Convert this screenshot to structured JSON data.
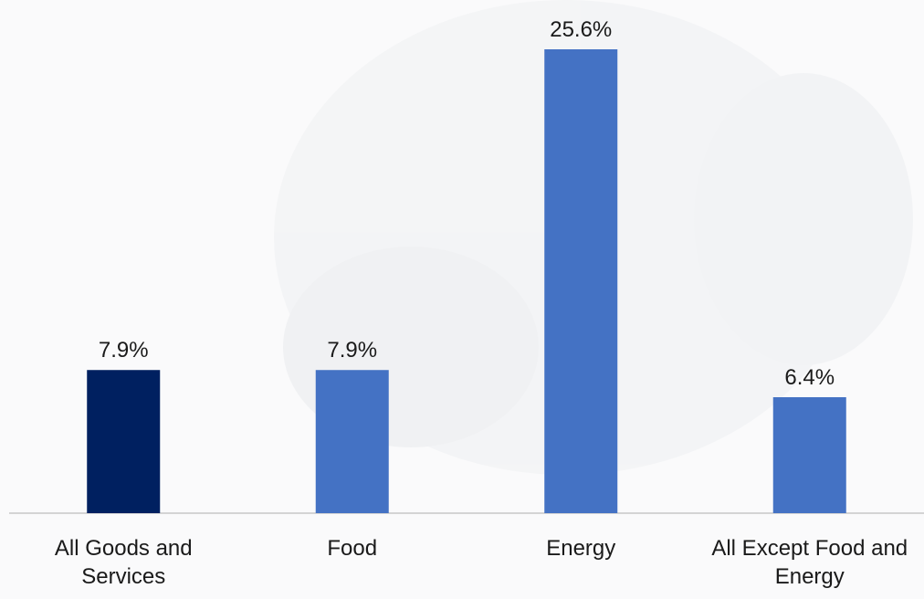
{
  "chart_data": {
    "type": "bar",
    "categories": [
      "All Goods and Services",
      "Food",
      "Energy",
      "All Except Food and Energy"
    ],
    "values": [
      7.9,
      7.9,
      25.6,
      6.4
    ],
    "value_labels": [
      "7.9%",
      "7.9%",
      "25.6%",
      "6.4%"
    ],
    "colors": [
      "#002060",
      "#4472c4",
      "#4472c4",
      "#4472c4"
    ]
  }
}
